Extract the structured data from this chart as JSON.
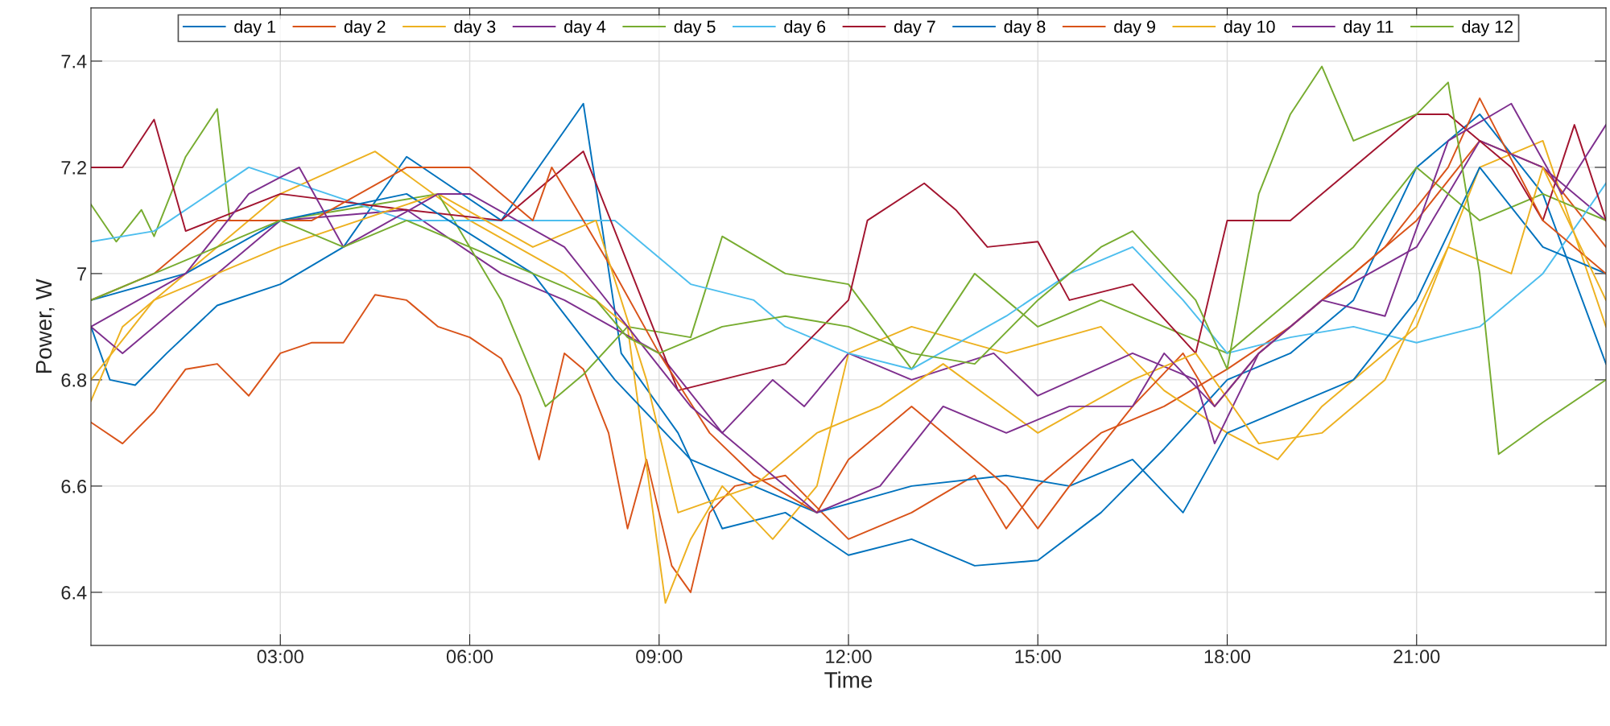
{
  "chart_data": {
    "type": "line",
    "xlabel": "Time",
    "ylabel": "Power, W",
    "xlim": [
      0,
      24
    ],
    "ylim": [
      6.3,
      7.5
    ],
    "xticks": [
      {
        "value": 3,
        "label": "03:00"
      },
      {
        "value": 6,
        "label": "06:00"
      },
      {
        "value": 9,
        "label": "09:00"
      },
      {
        "value": 12,
        "label": "12:00"
      },
      {
        "value": 15,
        "label": "15:00"
      },
      {
        "value": 18,
        "label": "18:00"
      },
      {
        "value": 21,
        "label": "21:00"
      }
    ],
    "yticks": [
      6.4,
      6.6,
      6.8,
      {
        "value": 7,
        "label": "7"
      },
      7.2,
      7.4
    ],
    "grid": true,
    "legend": "top",
    "marker": "none",
    "line_style": "solid",
    "series": [
      {
        "name": "day 1",
        "color": "#0072bd",
        "x": [
          0,
          0.3,
          0.7,
          1.2,
          2,
          3,
          4,
          5,
          6.5,
          7.8,
          8.4,
          9.3,
          10,
          11,
          12,
          13,
          14,
          15,
          16,
          17,
          18,
          19,
          20,
          21,
          22,
          23,
          24
        ],
        "values": [
          6.9,
          6.8,
          6.79,
          6.85,
          6.94,
          6.98,
          7.05,
          7.22,
          7.1,
          7.32,
          6.85,
          6.7,
          6.52,
          6.55,
          6.47,
          6.5,
          6.45,
          6.46,
          6.55,
          6.67,
          6.8,
          6.85,
          6.95,
          7.2,
          7.3,
          7.15,
          6.83
        ]
      },
      {
        "name": "day 2",
        "color": "#d95319",
        "x": [
          0,
          0.5,
          1,
          1.5,
          2,
          2.5,
          3,
          3.5,
          4,
          4.5,
          5,
          5.5,
          6,
          6.5,
          6.8,
          7.1,
          7.5,
          7.8,
          8.2,
          8.5,
          8.8,
          9.2,
          9.5,
          9.8,
          10.2,
          11,
          12,
          13,
          14,
          14.5,
          15,
          16,
          17,
          18,
          19,
          20,
          21,
          22,
          23,
          24
        ],
        "values": [
          6.72,
          6.68,
          6.74,
          6.82,
          6.83,
          6.77,
          6.85,
          6.87,
          6.87,
          6.96,
          6.95,
          6.9,
          6.88,
          6.84,
          6.77,
          6.65,
          6.85,
          6.82,
          6.7,
          6.52,
          6.65,
          6.45,
          6.4,
          6.55,
          6.6,
          6.62,
          6.5,
          6.55,
          6.62,
          6.52,
          6.6,
          6.7,
          6.75,
          6.82,
          6.9,
          7.0,
          7.1,
          7.25,
          7.2,
          7.05
        ]
      },
      {
        "name": "day 3",
        "color": "#edb120",
        "x": [
          0,
          0.5,
          1.5,
          3,
          4.5,
          6,
          7.5,
          8.5,
          9.1,
          9.5,
          10,
          10.8,
          11.5,
          12,
          13,
          14.5,
          16,
          17,
          18,
          18.8,
          19.5,
          21,
          22,
          23,
          24
        ],
        "values": [
          6.76,
          6.9,
          7.0,
          7.15,
          7.23,
          7.1,
          7.0,
          6.9,
          6.38,
          6.5,
          6.6,
          6.5,
          6.6,
          6.85,
          6.9,
          6.85,
          6.9,
          6.78,
          6.7,
          6.65,
          6.75,
          6.9,
          7.2,
          7.25,
          6.9
        ]
      },
      {
        "name": "day 4",
        "color": "#7e2f8e",
        "x": [
          0,
          0.5,
          2,
          3,
          5,
          6.5,
          7.5,
          9,
          10,
          10.8,
          11.3,
          12,
          13,
          14.3,
          15,
          16.5,
          17.5,
          17.8,
          18.5,
          19.5,
          21,
          22,
          23,
          24
        ],
        "values": [
          6.9,
          6.85,
          7.0,
          7.1,
          7.12,
          7.0,
          6.95,
          6.85,
          6.7,
          6.8,
          6.75,
          6.85,
          6.8,
          6.85,
          6.77,
          6.85,
          6.8,
          6.68,
          6.85,
          6.95,
          7.05,
          7.25,
          7.2,
          7.1
        ]
      },
      {
        "name": "day 5",
        "color": "#77ac30",
        "x": [
          0,
          0.4,
          0.8,
          1,
          1.5,
          2,
          2.2,
          3,
          4,
          5.5,
          6.5,
          7.2,
          7.8,
          8.5,
          9.5,
          10,
          11,
          12,
          13,
          14,
          15,
          16,
          17,
          18,
          19,
          20,
          21,
          22,
          23,
          24
        ],
        "values": [
          7.13,
          7.06,
          7.12,
          7.07,
          7.22,
          7.31,
          7.1,
          7.1,
          7.12,
          7.15,
          6.95,
          6.75,
          6.81,
          6.9,
          6.88,
          7.07,
          7.0,
          6.98,
          6.82,
          7.0,
          6.9,
          6.95,
          6.9,
          6.85,
          6.95,
          7.05,
          7.2,
          7.1,
          7.15,
          7.1
        ]
      },
      {
        "name": "day 6",
        "color": "#4dbeee",
        "x": [
          0,
          1,
          2.5,
          5,
          7.5,
          8.3,
          8.8,
          9.5,
          10.5,
          11,
          12,
          13,
          14.5,
          15.5,
          16.5,
          17.3,
          18,
          19,
          20,
          21,
          22,
          23,
          24
        ],
        "values": [
          7.06,
          7.08,
          7.2,
          7.1,
          7.1,
          7.1,
          7.05,
          6.98,
          6.95,
          6.9,
          6.85,
          6.82,
          6.92,
          7.0,
          7.05,
          6.95,
          6.85,
          6.88,
          6.9,
          6.87,
          6.9,
          7.0,
          7.17
        ]
      },
      {
        "name": "day 7",
        "color": "#a2142f",
        "x": [
          0,
          0.5,
          1,
          1.5,
          3,
          5,
          6.5,
          7.8,
          9.3,
          11,
          12,
          12.3,
          13.2,
          13.7,
          14.2,
          15,
          15.5,
          16.5,
          17.5,
          18,
          19,
          20,
          21,
          21.5,
          22.5,
          23,
          23.5,
          24
        ],
        "values": [
          7.2,
          7.2,
          7.29,
          7.08,
          7.15,
          7.12,
          7.1,
          7.23,
          6.78,
          6.83,
          6.95,
          7.1,
          7.17,
          7.12,
          7.05,
          7.06,
          6.95,
          6.98,
          6.85,
          7.1,
          7.1,
          7.2,
          7.3,
          7.3,
          7.2,
          7.1,
          7.28,
          7.1
        ]
      },
      {
        "name": "day 8",
        "color": "#0072bd",
        "x": [
          0,
          1.5,
          3,
          5,
          7,
          8.3,
          9.5,
          10.5,
          11.5,
          13,
          14.5,
          15.5,
          16.5,
          17.3,
          18,
          19,
          20,
          21,
          22,
          23,
          24
        ],
        "values": [
          6.95,
          7.0,
          7.1,
          7.15,
          7.0,
          6.8,
          6.65,
          6.6,
          6.55,
          6.6,
          6.62,
          6.6,
          6.65,
          6.55,
          6.7,
          6.75,
          6.8,
          6.95,
          7.2,
          7.05,
          7.0
        ]
      },
      {
        "name": "day 9",
        "color": "#d95319",
        "x": [
          0,
          1,
          2,
          3.5,
          5,
          6,
          7,
          7.3,
          8.3,
          9,
          9.8,
          10.5,
          11.5,
          12,
          13,
          14,
          14.5,
          15,
          15.5,
          16.5,
          17.3,
          17.8,
          18.5,
          19.5,
          20.5,
          21.5,
          22,
          23,
          24
        ],
        "values": [
          6.95,
          7.0,
          7.1,
          7.1,
          7.2,
          7.2,
          7.1,
          7.2,
          7.0,
          6.85,
          6.7,
          6.62,
          6.55,
          6.65,
          6.75,
          6.65,
          6.6,
          6.52,
          6.6,
          6.75,
          6.85,
          6.75,
          6.85,
          6.95,
          7.05,
          7.2,
          7.33,
          7.1,
          7.0
        ]
      },
      {
        "name": "day 10",
        "color": "#edb120",
        "x": [
          0,
          1,
          3,
          5.5,
          7,
          8,
          8.8,
          9.3,
          10.5,
          11.5,
          12.5,
          13.5,
          15,
          16.5,
          17.5,
          18.5,
          19.5,
          20.5,
          21.5,
          22.5,
          23,
          24
        ],
        "values": [
          6.8,
          6.95,
          7.05,
          7.15,
          7.05,
          7.1,
          6.8,
          6.55,
          6.6,
          6.7,
          6.75,
          6.83,
          6.7,
          6.8,
          6.85,
          6.68,
          6.7,
          6.8,
          7.05,
          7.0,
          7.2,
          6.95
        ]
      },
      {
        "name": "day 11",
        "color": "#7e2f8e",
        "x": [
          0,
          1.5,
          2.5,
          3.3,
          4,
          5.5,
          6,
          7.5,
          8.5,
          9.5,
          10.5,
          11.5,
          12.5,
          13.5,
          14.5,
          15.5,
          16.5,
          17,
          17.8,
          18.5,
          19.5,
          20.5,
          21.5,
          22.5,
          23.3,
          24
        ],
        "values": [
          6.9,
          7.0,
          7.15,
          7.2,
          7.05,
          7.15,
          7.15,
          7.05,
          6.9,
          6.75,
          6.65,
          6.55,
          6.6,
          6.75,
          6.7,
          6.75,
          6.75,
          6.85,
          6.75,
          6.85,
          6.95,
          6.92,
          7.25,
          7.32,
          7.15,
          7.28
        ]
      },
      {
        "name": "day 12",
        "color": "#77ac30",
        "x": [
          0,
          1,
          2,
          3,
          4,
          5,
          6,
          7,
          8,
          8.5,
          9,
          10,
          11,
          12,
          13,
          14,
          15,
          16,
          16.5,
          17.5,
          18,
          18.5,
          19,
          19.5,
          20,
          21,
          21.5,
          22,
          22.3,
          23,
          24
        ],
        "values": [
          6.95,
          7.0,
          7.05,
          7.1,
          7.05,
          7.1,
          7.05,
          7.0,
          6.95,
          6.88,
          6.85,
          6.9,
          6.92,
          6.9,
          6.85,
          6.83,
          6.95,
          7.05,
          7.08,
          6.95,
          6.82,
          7.15,
          7.3,
          7.39,
          7.25,
          7.3,
          7.36,
          7.0,
          6.66,
          6.72,
          6.8
        ]
      }
    ]
  }
}
